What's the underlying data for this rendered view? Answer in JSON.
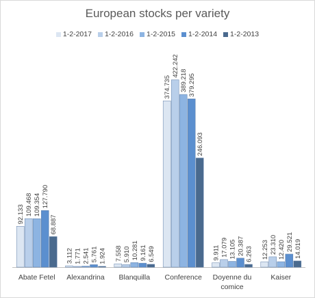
{
  "chart_data": {
    "type": "bar",
    "title": "European stocks per variety",
    "categories": [
      [
        "Abate Fetel"
      ],
      [
        "Alexandrina"
      ],
      [
        "Blanquilla"
      ],
      [
        "Conference"
      ],
      [
        "Doyenne du",
        "comice"
      ],
      [
        "Kaiser"
      ]
    ],
    "series": [
      {
        "name": "1-2-2017",
        "color": "#dce6f2",
        "values": [
          92.133,
          3.112,
          7.558,
          374.735,
          9.911,
          12.253
        ],
        "labels": [
          "92.133",
          "3.112",
          "7.558",
          "374.735",
          "9.911",
          "12.253"
        ]
      },
      {
        "name": "1-2-2016",
        "color": "#b9cfea",
        "values": [
          109.468,
          1.771,
          5.91,
          422.242,
          17.079,
          23.31
        ],
        "labels": [
          "109.468",
          "1.771",
          "5.910",
          "422.242",
          "17.079",
          "23.310"
        ]
      },
      {
        "name": "1-2-2015",
        "color": "#8db4e2",
        "values": [
          109.354,
          2.541,
          10.281,
          389.218,
          13.105,
          12.42
        ],
        "labels": [
          "109.354",
          "2.541",
          "10.281",
          "389.218",
          "13.105",
          "12.420"
        ]
      },
      {
        "name": "1-2-2014",
        "color": "#5b8fcf",
        "values": [
          127.79,
          5.761,
          9.161,
          379.295,
          20.387,
          29.521
        ],
        "labels": [
          "127.790",
          "5.761",
          "9.161",
          "379.295",
          "20.387",
          "29.521"
        ]
      },
      {
        "name": "1-2-2013",
        "color": "#4a6a8e",
        "values": [
          68.887,
          1.924,
          6.549,
          246.093,
          6.263,
          14.019
        ],
        "labels": [
          "68.887",
          "1.924",
          "6.549",
          "246.093",
          "6.263",
          "14.019"
        ]
      }
    ],
    "ylim": [
      0,
      460
    ],
    "grid": false,
    "legend_position": "top"
  }
}
